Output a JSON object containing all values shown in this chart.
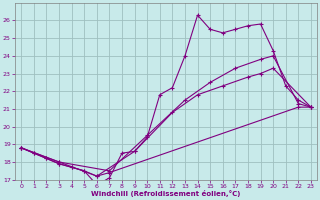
{
  "xlabel": "Windchill (Refroidissement éolien,°C)",
  "bg_color": "#c8eaea",
  "grid_color": "#9fbfbf",
  "line_color": "#800080",
  "xlim": [
    -0.5,
    23.5
  ],
  "ylim": [
    17,
    27
  ],
  "yticks": [
    17,
    18,
    19,
    20,
    21,
    22,
    23,
    24,
    25,
    26
  ],
  "xticks": [
    0,
    1,
    2,
    3,
    4,
    5,
    6,
    7,
    8,
    9,
    10,
    11,
    12,
    13,
    14,
    15,
    16,
    17,
    18,
    19,
    20,
    21,
    22,
    23
  ],
  "lines": [
    {
      "x": [
        0,
        1,
        2,
        3,
        4,
        5,
        6,
        7,
        22,
        23
      ],
      "y": [
        18.8,
        18.5,
        18.2,
        17.9,
        17.7,
        17.5,
        17.2,
        17.4,
        21.1,
        21.1
      ]
    },
    {
      "x": [
        0,
        1,
        2,
        3,
        4,
        5,
        6,
        7,
        8,
        9,
        10,
        11,
        12,
        13,
        14,
        15,
        16,
        17,
        18,
        19,
        20,
        21,
        22,
        23
      ],
      "y": [
        18.8,
        18.5,
        18.2,
        17.9,
        17.7,
        17.5,
        16.7,
        17.1,
        18.5,
        18.6,
        19.4,
        21.8,
        22.2,
        24.0,
        26.3,
        25.5,
        25.3,
        25.5,
        25.7,
        25.8,
        24.3,
        22.3,
        21.5,
        21.1
      ]
    },
    {
      "x": [
        0,
        3,
        7,
        10,
        13,
        15,
        17,
        19,
        20,
        22,
        23
      ],
      "y": [
        18.8,
        18.0,
        17.5,
        19.5,
        21.5,
        22.5,
        23.3,
        23.8,
        24.0,
        21.3,
        21.1
      ]
    },
    {
      "x": [
        0,
        3,
        6,
        9,
        12,
        14,
        16,
        18,
        19,
        20,
        23
      ],
      "y": [
        18.8,
        18.0,
        17.2,
        18.6,
        20.8,
        21.8,
        22.3,
        22.8,
        23.0,
        23.3,
        21.1
      ]
    }
  ]
}
